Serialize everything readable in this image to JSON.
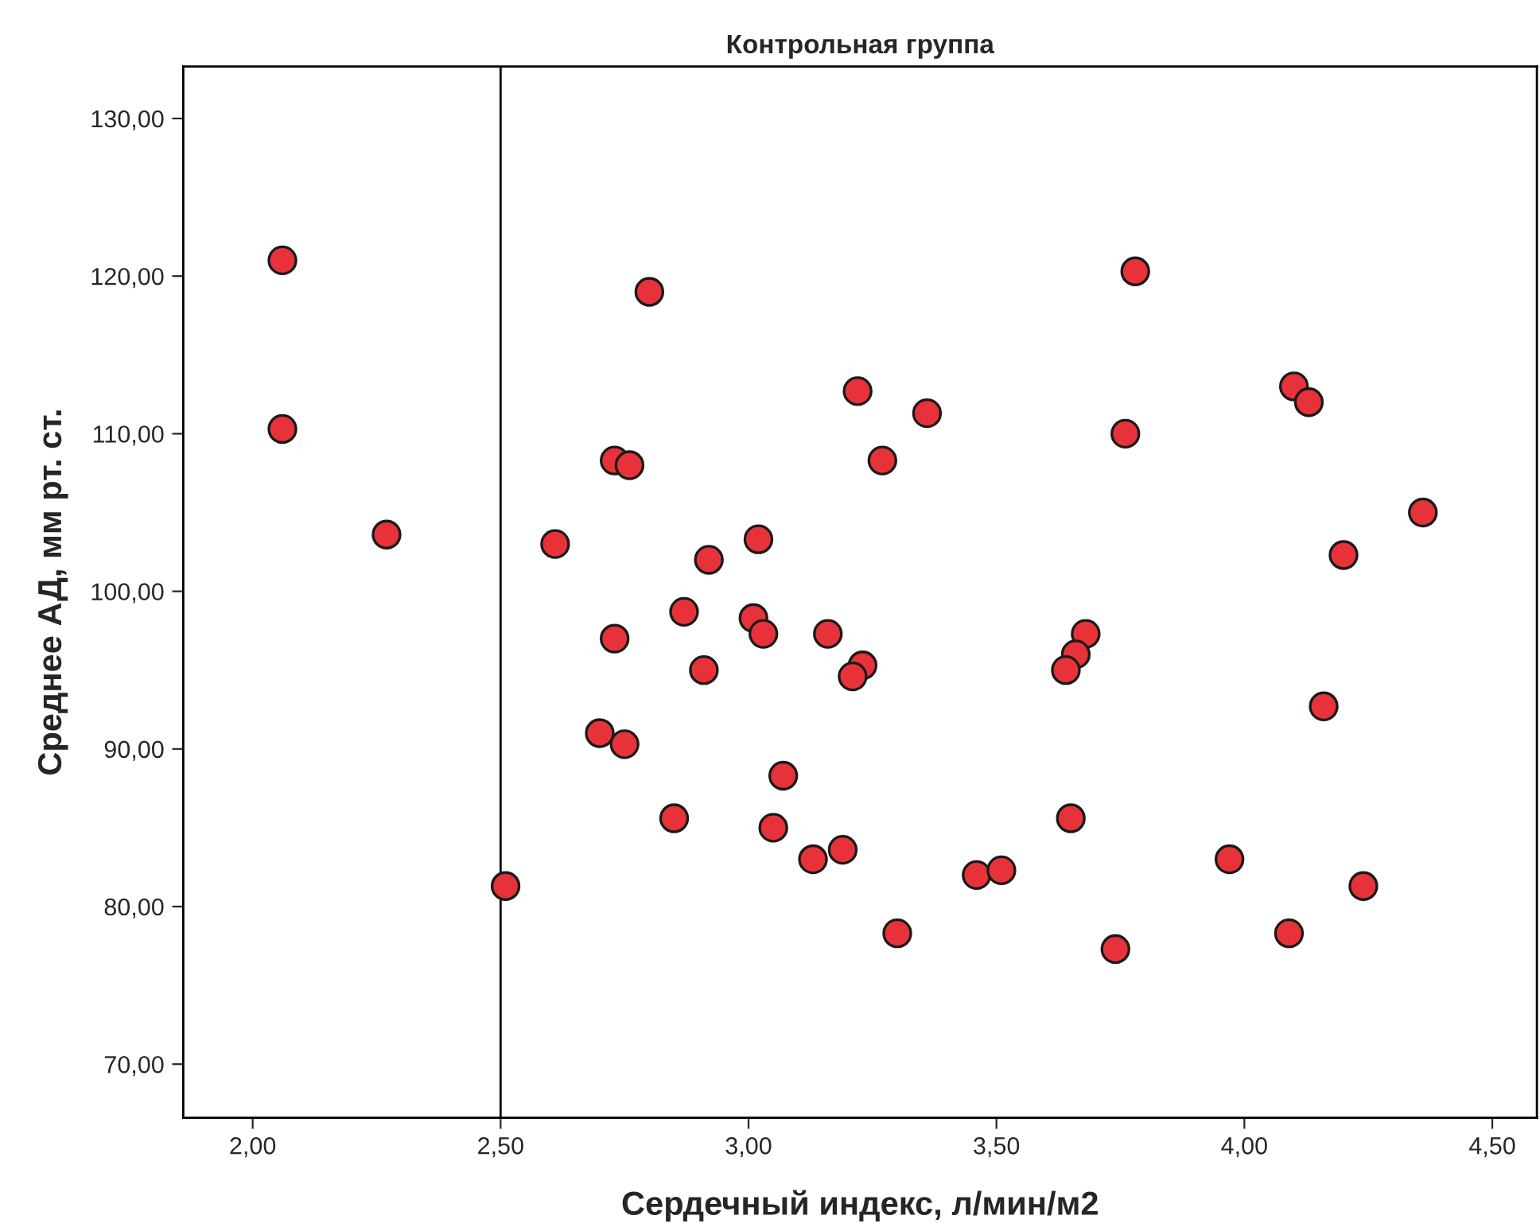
{
  "chart_data": {
    "type": "scatter",
    "title": "Контрольная группа",
    "xlabel": "Сердечный индекс, л/мин/м2",
    "ylabel": "Среднее АД, мм рт. ст.",
    "xlim": [
      1.86,
      4.59
    ],
    "ylim": [
      66.6,
      133.3
    ],
    "xticks": [
      {
        "value": 2.0,
        "label": "2,00"
      },
      {
        "value": 2.5,
        "label": "2,50"
      },
      {
        "value": 3.0,
        "label": "3,00"
      },
      {
        "value": 3.5,
        "label": "3,50"
      },
      {
        "value": 4.0,
        "label": "4,00"
      },
      {
        "value": 4.5,
        "label": "4,50"
      }
    ],
    "yticks": [
      {
        "value": 70,
        "label": "70,00"
      },
      {
        "value": 80,
        "label": "80,00"
      },
      {
        "value": 90,
        "label": "90,00"
      },
      {
        "value": 100,
        "label": "100,00"
      },
      {
        "value": 110,
        "label": "110,00"
      },
      {
        "value": 120,
        "label": "120,00"
      },
      {
        "value": 130,
        "label": "130,00"
      }
    ],
    "grid": false,
    "marker": "circle",
    "ref_lines": [
      {
        "axis": "x",
        "value": 2.5,
        "color": "#000000"
      }
    ],
    "series": [
      {
        "color": "#e8323a",
        "x": [
          2.06,
          2.06,
          2.27,
          2.51,
          2.61,
          2.8,
          2.73,
          2.76,
          2.87,
          2.92,
          3.02,
          2.73,
          3.01,
          3.03,
          2.91,
          3.16,
          2.7,
          2.75,
          3.07,
          2.85,
          3.05,
          3.13,
          3.19,
          3.22,
          3.36,
          3.27,
          3.23,
          3.21,
          3.3,
          3.46,
          3.51,
          3.78,
          3.76,
          3.68,
          3.66,
          3.64,
          3.65,
          3.74,
          3.97,
          4.1,
          4.13,
          4.36,
          4.2,
          4.16,
          4.24,
          4.09
        ],
        "values": [
          121.0,
          110.3,
          103.6,
          81.3,
          103.0,
          119.0,
          108.3,
          108.0,
          98.7,
          102.0,
          103.3,
          97.0,
          98.3,
          97.3,
          95.0,
          97.3,
          91.0,
          90.3,
          88.3,
          85.6,
          85.0,
          83.0,
          83.6,
          112.7,
          111.3,
          108.3,
          95.3,
          94.6,
          78.3,
          82.0,
          82.3,
          120.3,
          110.0,
          97.3,
          96.0,
          95.0,
          85.6,
          77.3,
          83.0,
          113.0,
          112.0,
          105.0,
          102.3,
          92.7,
          81.3,
          78.3
        ]
      }
    ]
  }
}
